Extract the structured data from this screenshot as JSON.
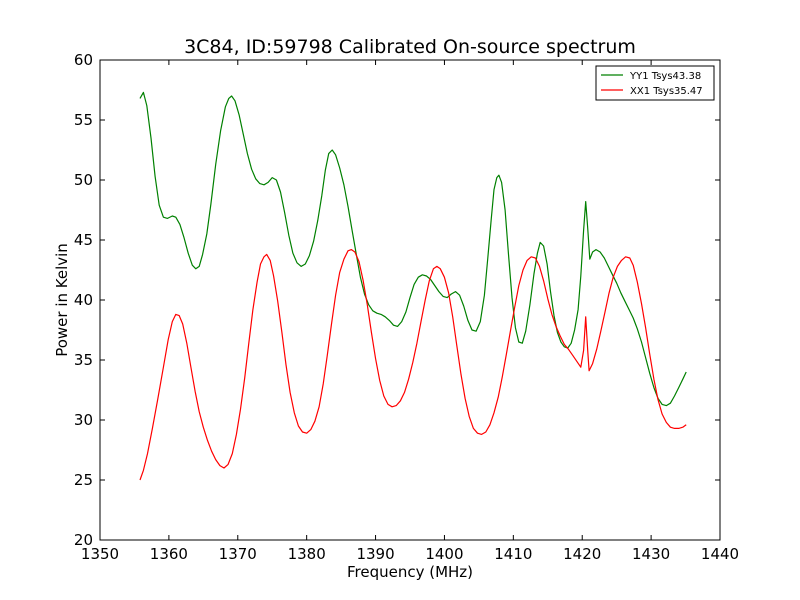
{
  "chart_data": {
    "type": "line",
    "title": "3C84, ID:59798 Calibrated On-source spectrum",
    "xlabel": "Frequency (MHz)",
    "ylabel": "Power in Kelvin",
    "xlim": [
      1350,
      1440
    ],
    "ylim": [
      20,
      60
    ],
    "x_ticks": [
      1350,
      1360,
      1370,
      1380,
      1390,
      1400,
      1410,
      1420,
      1430,
      1440
    ],
    "y_ticks": [
      20,
      25,
      30,
      35,
      40,
      45,
      50,
      55,
      60
    ],
    "grid": false,
    "legend_position": "top-right",
    "series": [
      {
        "name": "YY1 Tsys43.38",
        "color": "#008000",
        "points": [
          [
            1355.8,
            56.8
          ],
          [
            1356.3,
            57.3
          ],
          [
            1356.8,
            56.2
          ],
          [
            1357.4,
            53.5
          ],
          [
            1358.0,
            50.3
          ],
          [
            1358.6,
            47.9
          ],
          [
            1359.2,
            46.9
          ],
          [
            1359.8,
            46.8
          ],
          [
            1360.5,
            47.0
          ],
          [
            1361.0,
            46.9
          ],
          [
            1361.6,
            46.3
          ],
          [
            1362.2,
            45.2
          ],
          [
            1362.8,
            43.9
          ],
          [
            1363.4,
            42.9
          ],
          [
            1363.9,
            42.6
          ],
          [
            1364.4,
            42.8
          ],
          [
            1364.9,
            43.8
          ],
          [
            1365.5,
            45.5
          ],
          [
            1366.1,
            48.0
          ],
          [
            1366.8,
            51.3
          ],
          [
            1367.5,
            54.1
          ],
          [
            1368.2,
            56.1
          ],
          [
            1368.7,
            56.8
          ],
          [
            1369.1,
            57.0
          ],
          [
            1369.6,
            56.6
          ],
          [
            1370.2,
            55.4
          ],
          [
            1370.8,
            53.8
          ],
          [
            1371.4,
            52.2
          ],
          [
            1372.0,
            50.9
          ],
          [
            1372.6,
            50.1
          ],
          [
            1373.2,
            49.7
          ],
          [
            1373.8,
            49.6
          ],
          [
            1374.4,
            49.8
          ],
          [
            1375.0,
            50.2
          ],
          [
            1375.6,
            50.0
          ],
          [
            1376.2,
            49.0
          ],
          [
            1376.8,
            47.3
          ],
          [
            1377.4,
            45.4
          ],
          [
            1378.0,
            43.9
          ],
          [
            1378.6,
            43.1
          ],
          [
            1379.2,
            42.8
          ],
          [
            1379.8,
            43.0
          ],
          [
            1380.4,
            43.7
          ],
          [
            1381.0,
            44.9
          ],
          [
            1381.6,
            46.6
          ],
          [
            1382.2,
            48.7
          ],
          [
            1382.7,
            50.8
          ],
          [
            1383.2,
            52.2
          ],
          [
            1383.7,
            52.5
          ],
          [
            1384.2,
            52.1
          ],
          [
            1384.8,
            51.0
          ],
          [
            1385.4,
            49.6
          ],
          [
            1386.0,
            47.8
          ],
          [
            1386.6,
            45.8
          ],
          [
            1387.2,
            43.8
          ],
          [
            1387.8,
            41.9
          ],
          [
            1388.4,
            40.5
          ],
          [
            1389.0,
            39.6
          ],
          [
            1389.6,
            39.1
          ],
          [
            1390.2,
            38.9
          ],
          [
            1390.8,
            38.8
          ],
          [
            1391.4,
            38.6
          ],
          [
            1392.0,
            38.3
          ],
          [
            1392.6,
            37.9
          ],
          [
            1393.2,
            37.8
          ],
          [
            1393.8,
            38.2
          ],
          [
            1394.4,
            39.0
          ],
          [
            1395.0,
            40.2
          ],
          [
            1395.6,
            41.3
          ],
          [
            1396.2,
            41.9
          ],
          [
            1396.8,
            42.1
          ],
          [
            1397.4,
            42.0
          ],
          [
            1398.0,
            41.7
          ],
          [
            1398.6,
            41.2
          ],
          [
            1399.2,
            40.7
          ],
          [
            1399.8,
            40.3
          ],
          [
            1400.4,
            40.2
          ],
          [
            1401.0,
            40.5
          ],
          [
            1401.6,
            40.7
          ],
          [
            1402.2,
            40.4
          ],
          [
            1402.8,
            39.5
          ],
          [
            1403.4,
            38.3
          ],
          [
            1404.0,
            37.5
          ],
          [
            1404.6,
            37.4
          ],
          [
            1405.2,
            38.2
          ],
          [
            1405.8,
            40.4
          ],
          [
            1406.3,
            43.5
          ],
          [
            1406.8,
            46.8
          ],
          [
            1407.2,
            49.2
          ],
          [
            1407.6,
            50.2
          ],
          [
            1407.9,
            50.4
          ],
          [
            1408.3,
            49.8
          ],
          [
            1408.8,
            47.5
          ],
          [
            1409.3,
            43.8
          ],
          [
            1409.8,
            40.2
          ],
          [
            1410.3,
            37.7
          ],
          [
            1410.8,
            36.5
          ],
          [
            1411.3,
            36.4
          ],
          [
            1411.8,
            37.4
          ],
          [
            1412.4,
            39.6
          ],
          [
            1413.0,
            42.2
          ],
          [
            1413.5,
            43.9
          ],
          [
            1413.9,
            44.8
          ],
          [
            1414.4,
            44.5
          ],
          [
            1414.9,
            43.0
          ],
          [
            1415.4,
            40.7
          ],
          [
            1415.9,
            38.7
          ],
          [
            1416.4,
            37.3
          ],
          [
            1416.9,
            36.5
          ],
          [
            1417.4,
            36.1
          ],
          [
            1417.9,
            36.0
          ],
          [
            1418.4,
            36.4
          ],
          [
            1418.9,
            37.5
          ],
          [
            1419.4,
            39.2
          ],
          [
            1419.8,
            42.0
          ],
          [
            1420.2,
            45.8
          ],
          [
            1420.5,
            48.2
          ],
          [
            1420.8,
            46.0
          ],
          [
            1421.1,
            43.4
          ],
          [
            1421.5,
            44.0
          ],
          [
            1422.0,
            44.2
          ],
          [
            1422.6,
            44.0
          ],
          [
            1423.2,
            43.5
          ],
          [
            1423.8,
            42.8
          ],
          [
            1424.4,
            42.1
          ],
          [
            1425.0,
            41.4
          ],
          [
            1425.6,
            40.6
          ],
          [
            1426.2,
            39.9
          ],
          [
            1426.8,
            39.2
          ],
          [
            1427.4,
            38.5
          ],
          [
            1428.0,
            37.6
          ],
          [
            1428.6,
            36.5
          ],
          [
            1429.2,
            35.2
          ],
          [
            1429.8,
            33.9
          ],
          [
            1430.4,
            32.7
          ],
          [
            1431.0,
            31.8
          ],
          [
            1431.6,
            31.3
          ],
          [
            1432.2,
            31.2
          ],
          [
            1432.8,
            31.4
          ],
          [
            1433.4,
            32.0
          ],
          [
            1434.0,
            32.7
          ],
          [
            1434.6,
            33.4
          ],
          [
            1435.1,
            34.0
          ]
        ]
      },
      {
        "name": "XX1 Tsys35.47",
        "color": "#ff0000",
        "points": [
          [
            1355.8,
            25.0
          ],
          [
            1356.3,
            25.8
          ],
          [
            1356.9,
            27.2
          ],
          [
            1357.6,
            29.3
          ],
          [
            1358.4,
            31.8
          ],
          [
            1359.2,
            34.4
          ],
          [
            1359.9,
            36.7
          ],
          [
            1360.5,
            38.2
          ],
          [
            1361.0,
            38.8
          ],
          [
            1361.5,
            38.7
          ],
          [
            1362.0,
            38.0
          ],
          [
            1362.6,
            36.4
          ],
          [
            1363.2,
            34.4
          ],
          [
            1363.8,
            32.4
          ],
          [
            1364.4,
            30.7
          ],
          [
            1365.0,
            29.4
          ],
          [
            1365.6,
            28.3
          ],
          [
            1366.2,
            27.4
          ],
          [
            1366.8,
            26.7
          ],
          [
            1367.4,
            26.2
          ],
          [
            1368.0,
            26.0
          ],
          [
            1368.6,
            26.3
          ],
          [
            1369.2,
            27.2
          ],
          [
            1369.8,
            28.8
          ],
          [
            1370.4,
            30.9
          ],
          [
            1371.0,
            33.5
          ],
          [
            1371.6,
            36.4
          ],
          [
            1372.2,
            39.2
          ],
          [
            1372.8,
            41.5
          ],
          [
            1373.3,
            43.0
          ],
          [
            1373.8,
            43.6
          ],
          [
            1374.2,
            43.8
          ],
          [
            1374.7,
            43.3
          ],
          [
            1375.2,
            42.0
          ],
          [
            1375.8,
            39.9
          ],
          [
            1376.4,
            37.3
          ],
          [
            1377.0,
            34.6
          ],
          [
            1377.6,
            32.3
          ],
          [
            1378.2,
            30.6
          ],
          [
            1378.8,
            29.5
          ],
          [
            1379.4,
            29.0
          ],
          [
            1380.0,
            28.9
          ],
          [
            1380.6,
            29.2
          ],
          [
            1381.2,
            29.9
          ],
          [
            1381.8,
            31.1
          ],
          [
            1382.4,
            33.0
          ],
          [
            1383.0,
            35.4
          ],
          [
            1383.6,
            38.0
          ],
          [
            1384.2,
            40.4
          ],
          [
            1384.8,
            42.3
          ],
          [
            1385.4,
            43.4
          ],
          [
            1386.0,
            44.1
          ],
          [
            1386.5,
            44.2
          ],
          [
            1387.0,
            44.0
          ],
          [
            1387.6,
            43.2
          ],
          [
            1388.2,
            41.6
          ],
          [
            1388.8,
            39.6
          ],
          [
            1389.4,
            37.3
          ],
          [
            1390.0,
            35.1
          ],
          [
            1390.6,
            33.3
          ],
          [
            1391.2,
            32.0
          ],
          [
            1391.8,
            31.3
          ],
          [
            1392.4,
            31.1
          ],
          [
            1393.0,
            31.2
          ],
          [
            1393.6,
            31.6
          ],
          [
            1394.2,
            32.3
          ],
          [
            1394.8,
            33.4
          ],
          [
            1395.4,
            34.8
          ],
          [
            1396.0,
            36.4
          ],
          [
            1396.6,
            38.2
          ],
          [
            1397.2,
            40.0
          ],
          [
            1397.8,
            41.6
          ],
          [
            1398.4,
            42.6
          ],
          [
            1398.9,
            42.8
          ],
          [
            1399.4,
            42.6
          ],
          [
            1400.0,
            41.9
          ],
          [
            1400.6,
            40.6
          ],
          [
            1401.2,
            38.6
          ],
          [
            1401.8,
            36.2
          ],
          [
            1402.4,
            33.8
          ],
          [
            1403.0,
            31.8
          ],
          [
            1403.6,
            30.3
          ],
          [
            1404.2,
            29.3
          ],
          [
            1404.8,
            28.9
          ],
          [
            1405.4,
            28.8
          ],
          [
            1406.0,
            29.0
          ],
          [
            1406.6,
            29.6
          ],
          [
            1407.2,
            30.6
          ],
          [
            1407.8,
            31.9
          ],
          [
            1408.4,
            33.6
          ],
          [
            1409.0,
            35.5
          ],
          [
            1409.6,
            37.5
          ],
          [
            1410.2,
            39.4
          ],
          [
            1410.8,
            41.2
          ],
          [
            1411.4,
            42.5
          ],
          [
            1412.0,
            43.3
          ],
          [
            1412.6,
            43.6
          ],
          [
            1413.2,
            43.5
          ],
          [
            1413.8,
            42.8
          ],
          [
            1414.4,
            41.6
          ],
          [
            1415.0,
            40.1
          ],
          [
            1415.6,
            38.8
          ],
          [
            1416.2,
            37.8
          ],
          [
            1416.8,
            37.0
          ],
          [
            1417.4,
            36.3
          ],
          [
            1418.0,
            35.9
          ],
          [
            1418.6,
            35.4
          ],
          [
            1419.2,
            34.9
          ],
          [
            1419.8,
            34.4
          ],
          [
            1420.2,
            35.8
          ],
          [
            1420.5,
            38.6
          ],
          [
            1420.8,
            35.8
          ],
          [
            1421.0,
            34.1
          ],
          [
            1421.5,
            34.7
          ],
          [
            1422.1,
            35.9
          ],
          [
            1422.7,
            37.4
          ],
          [
            1423.3,
            39.0
          ],
          [
            1423.9,
            40.6
          ],
          [
            1424.5,
            41.9
          ],
          [
            1425.1,
            42.8
          ],
          [
            1425.7,
            43.3
          ],
          [
            1426.3,
            43.6
          ],
          [
            1426.9,
            43.5
          ],
          [
            1427.4,
            42.9
          ],
          [
            1428.0,
            41.5
          ],
          [
            1428.6,
            39.7
          ],
          [
            1429.2,
            37.7
          ],
          [
            1429.8,
            35.5
          ],
          [
            1430.4,
            33.4
          ],
          [
            1431.0,
            31.7
          ],
          [
            1431.6,
            30.5
          ],
          [
            1432.2,
            29.8
          ],
          [
            1432.8,
            29.4
          ],
          [
            1433.4,
            29.3
          ],
          [
            1434.0,
            29.3
          ],
          [
            1434.6,
            29.4
          ],
          [
            1435.1,
            29.6
          ]
        ]
      }
    ]
  }
}
